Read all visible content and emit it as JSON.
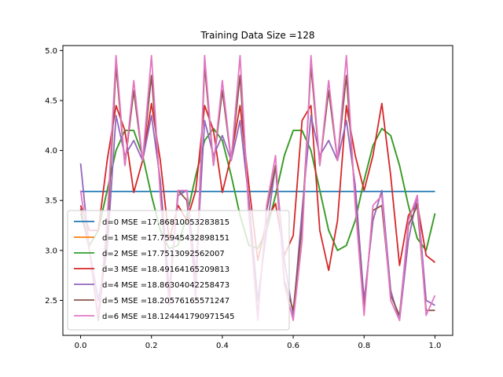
{
  "chart_data": {
    "type": "line",
    "title": "Training Data Size =128",
    "xlabel": "",
    "ylabel": "",
    "xlim": [
      -0.05,
      1.05
    ],
    "ylim": [
      2.15,
      5.05
    ],
    "xticks": [
      0.0,
      0.2,
      0.4,
      0.6,
      0.8,
      1.0
    ],
    "xtick_labels": [
      "0.0",
      "0.2",
      "0.4",
      "0.6",
      "0.8",
      "1.0"
    ],
    "yticks": [
      2.5,
      3.0,
      3.5,
      4.0,
      4.5,
      5.0
    ],
    "ytick_labels": [
      "2.5",
      "3.0",
      "3.5",
      "4.0",
      "4.5",
      "5.0"
    ],
    "grid": false,
    "legend_position": "lower-left",
    "x": [
      0.0,
      0.025,
      0.05,
      0.075,
      0.1,
      0.125,
      0.15,
      0.175,
      0.2,
      0.225,
      0.25,
      0.275,
      0.3,
      0.325,
      0.35,
      0.375,
      0.4,
      0.425,
      0.45,
      0.475,
      0.5,
      0.525,
      0.55,
      0.575,
      0.6,
      0.625,
      0.65,
      0.675,
      0.7,
      0.725,
      0.75,
      0.775,
      0.8,
      0.825,
      0.85,
      0.875,
      0.9,
      0.925,
      0.95,
      0.975,
      1.0
    ],
    "series": [
      {
        "name": "d=0 MSE =17.86810053283815",
        "color": "#1f77b4",
        "values": [
          3.59,
          3.59,
          3.59,
          3.59,
          3.59,
          3.59,
          3.59,
          3.59,
          3.59,
          3.59,
          3.59,
          3.59,
          3.59,
          3.59,
          3.59,
          3.59,
          3.59,
          3.59,
          3.59,
          3.59,
          3.59,
          3.59,
          3.59,
          3.59,
          3.59,
          3.59,
          3.59,
          3.59,
          3.59,
          3.59,
          3.59,
          3.59,
          3.59,
          3.59,
          3.59,
          3.59,
          3.59,
          3.59,
          3.59,
          3.59,
          3.59
        ]
      },
      {
        "name": "d=1 MSE =17.75945432898151",
        "color": "#ff7f0e",
        "values": [
          3.37,
          3.05,
          3.2,
          3.6,
          4.0,
          4.2,
          4.2,
          3.95,
          3.55,
          3.2,
          3.02,
          3.05,
          3.35,
          3.75,
          4.1,
          4.22,
          4.1,
          3.75,
          3.35,
          3.05,
          3.02,
          3.2,
          3.55,
          3.95,
          4.2,
          4.2,
          4.0,
          3.6,
          3.2,
          3.0,
          3.05,
          3.3,
          3.7,
          4.05,
          4.22,
          4.15,
          3.85,
          3.45,
          3.12,
          3.0,
          3.37
        ]
      },
      {
        "name": "d=2 MSE =17.7513092562007",
        "color": "#2ca02c",
        "values": [
          3.37,
          3.05,
          3.2,
          3.6,
          4.0,
          4.2,
          4.2,
          3.95,
          3.55,
          3.2,
          3.02,
          3.05,
          3.35,
          3.75,
          4.1,
          4.22,
          4.1,
          3.75,
          3.35,
          3.05,
          3.02,
          3.2,
          3.55,
          3.95,
          4.2,
          4.2,
          4.0,
          3.6,
          3.2,
          3.0,
          3.05,
          3.3,
          3.7,
          4.05,
          4.22,
          4.15,
          3.85,
          3.45,
          3.12,
          3.0,
          3.37
        ]
      },
      {
        "name": "d=3 MSE =18.49164165209813",
        "color": "#d62728",
        "values": [
          3.45,
          3.2,
          3.2,
          3.9,
          4.45,
          4.2,
          3.58,
          3.9,
          4.47,
          3.9,
          3.1,
          3.45,
          3.3,
          3.6,
          4.45,
          4.2,
          3.58,
          3.95,
          4.45,
          3.65,
          2.9,
          3.3,
          3.47,
          2.95,
          3.15,
          4.3,
          4.45,
          3.2,
          2.8,
          3.3,
          4.45,
          3.95,
          3.6,
          3.95,
          4.47,
          3.75,
          2.85,
          3.35,
          3.47,
          2.95,
          2.88
        ]
      },
      {
        "name": "d=4 MSE =18.86304042258473",
        "color": "#9467bd",
        "values": [
          3.87,
          3.0,
          2.5,
          3.0,
          4.35,
          3.95,
          4.1,
          3.9,
          4.35,
          3.7,
          2.6,
          3.55,
          3.6,
          2.75,
          4.3,
          3.95,
          4.15,
          3.9,
          4.3,
          3.5,
          2.5,
          3.2,
          3.85,
          2.9,
          2.35,
          3.4,
          4.35,
          3.95,
          4.1,
          3.9,
          4.3,
          3.65,
          2.5,
          3.3,
          3.6,
          2.6,
          2.3,
          3.1,
          3.55,
          2.5,
          2.45
        ]
      },
      {
        "name": "d=5 MSE =18.20576165571247",
        "color": "#8c564b",
        "values": [
          3.42,
          3.0,
          2.3,
          3.15,
          4.85,
          3.85,
          4.6,
          3.9,
          4.75,
          3.6,
          2.5,
          3.6,
          3.5,
          2.6,
          4.85,
          3.85,
          4.6,
          3.9,
          4.75,
          3.4,
          2.35,
          3.4,
          3.85,
          2.7,
          2.4,
          3.25,
          4.85,
          3.85,
          4.6,
          3.9,
          4.75,
          3.5,
          2.4,
          3.4,
          3.45,
          2.55,
          2.35,
          3.25,
          3.45,
          2.4,
          2.4
        ]
      },
      {
        "name": "d=6 MSE =18.124441790971545",
        "color": "#e377c2",
        "values": [
          3.6,
          3.0,
          2.35,
          3.3,
          4.95,
          3.85,
          4.7,
          3.9,
          4.95,
          3.55,
          2.45,
          3.6,
          3.6,
          2.5,
          4.95,
          3.85,
          4.7,
          3.9,
          4.95,
          3.35,
          2.3,
          3.45,
          3.95,
          2.65,
          2.3,
          3.1,
          4.95,
          3.85,
          4.7,
          3.9,
          4.95,
          3.45,
          2.35,
          3.45,
          3.55,
          2.5,
          2.3,
          3.3,
          3.55,
          2.35,
          2.55
        ]
      }
    ]
  }
}
